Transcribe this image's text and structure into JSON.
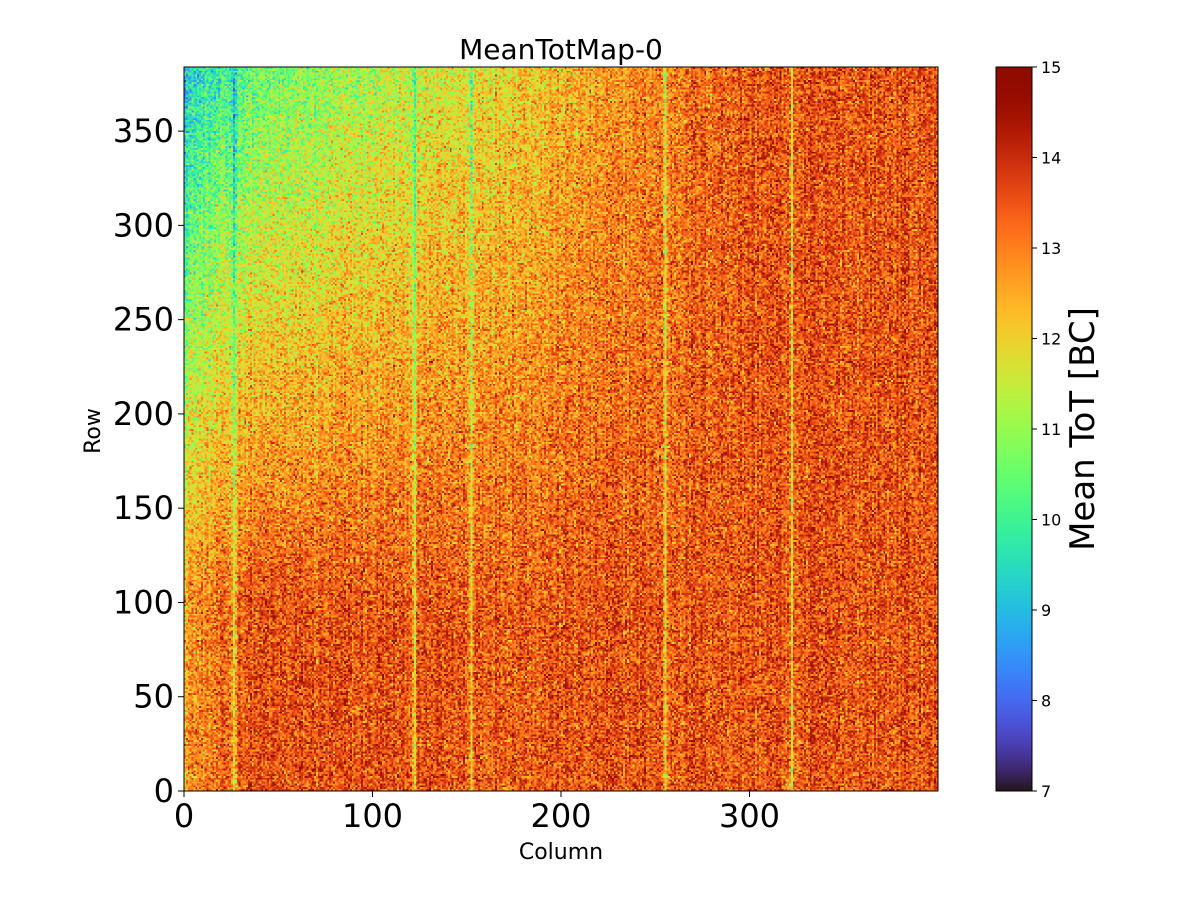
{
  "chart_data": {
    "type": "heatmap",
    "title": "MeanTotMap-0",
    "xlabel": "Column",
    "ylabel": "Row",
    "xlim": [
      0,
      400
    ],
    "ylim": [
      0,
      384
    ],
    "xticks": [
      0,
      100,
      200,
      300
    ],
    "yticks": [
      0,
      50,
      100,
      150,
      200,
      250,
      300,
      350
    ],
    "colorbar": {
      "label": "Mean ToT [BC]",
      "range": [
        7,
        15
      ],
      "ticks": [
        7,
        8,
        9,
        10,
        11,
        12,
        13,
        14,
        15
      ],
      "colormap": "turbo"
    },
    "grid": false,
    "summary": {
      "typical_value": 13.5,
      "top_left_region_value": 11.0,
      "low_columns": [
        26,
        122,
        152,
        255,
        322
      ]
    }
  }
}
